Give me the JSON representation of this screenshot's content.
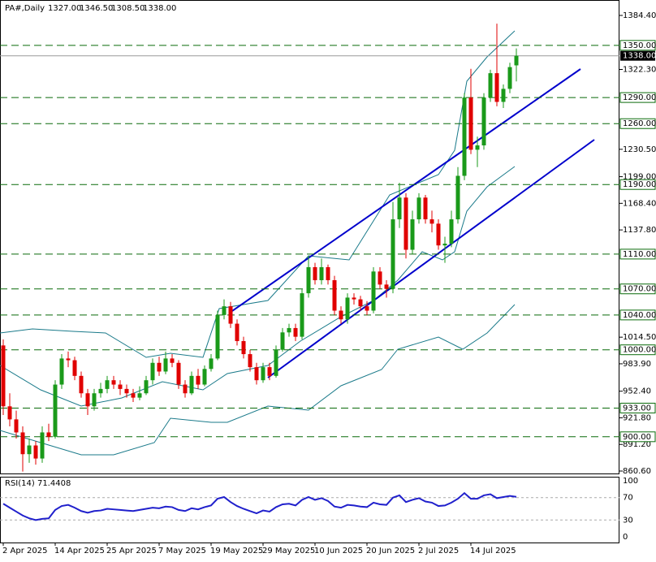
{
  "chart_data": {
    "type": "candlestick",
    "title": "PA#,Daily",
    "header_values": [
      "1327.00",
      "1346.50",
      "1308.50",
      "1338.00"
    ],
    "categories": [
      "2 Apr 2025",
      null,
      null,
      null,
      null,
      null,
      null,
      null,
      "14 Apr 2025",
      null,
      null,
      null,
      null,
      null,
      null,
      null,
      "25 Apr 2025",
      null,
      null,
      null,
      null,
      null,
      null,
      null,
      "7 May 2025",
      null,
      null,
      null,
      null,
      null,
      null,
      null,
      "19 May 2025",
      null,
      null,
      null,
      null,
      null,
      null,
      null,
      "29 May 2025",
      null,
      null,
      null,
      null,
      null,
      null,
      null,
      "10 Jun 2025",
      null,
      null,
      null,
      null,
      null,
      null,
      null,
      "20 Jun 2025",
      null,
      null,
      null,
      null,
      null,
      null,
      null,
      "2 Jul 2025",
      null,
      null,
      null,
      null,
      null,
      null,
      null,
      "14 Jul 2025",
      null,
      null,
      null,
      null,
      null,
      null,
      null
    ],
    "ohlc": [
      [
        1005,
        1012,
        925,
        935
      ],
      [
        935,
        950,
        912,
        920
      ],
      [
        920,
        930,
        898,
        905
      ],
      [
        905,
        912,
        860,
        880
      ],
      [
        880,
        898,
        870,
        890
      ],
      [
        890,
        895,
        868,
        875
      ],
      [
        875,
        912,
        870,
        905
      ],
      [
        905,
        915,
        895,
        900
      ],
      [
        900,
        965,
        898,
        960
      ],
      [
        960,
        995,
        955,
        990
      ],
      [
        990,
        998,
        980,
        988
      ],
      [
        988,
        992,
        965,
        970
      ],
      [
        970,
        975,
        945,
        950
      ],
      [
        950,
        955,
        925,
        935
      ],
      [
        935,
        955,
        930,
        950
      ],
      [
        950,
        962,
        945,
        955
      ],
      [
        955,
        970,
        950,
        965
      ],
      [
        965,
        970,
        955,
        960
      ],
      [
        960,
        965,
        948,
        955
      ],
      [
        955,
        960,
        945,
        950
      ],
      [
        950,
        955,
        940,
        945
      ],
      [
        945,
        958,
        942,
        950
      ],
      [
        950,
        970,
        948,
        965
      ],
      [
        965,
        990,
        960,
        985
      ],
      [
        985,
        992,
        970,
        975
      ],
      [
        975,
        998,
        972,
        990
      ],
      [
        990,
        995,
        980,
        985
      ],
      [
        985,
        988,
        955,
        960
      ],
      [
        960,
        965,
        945,
        950
      ],
      [
        950,
        975,
        948,
        970
      ],
      [
        970,
        978,
        955,
        960
      ],
      [
        960,
        982,
        958,
        978
      ],
      [
        978,
        995,
        975,
        990
      ],
      [
        990,
        1045,
        988,
        1040
      ],
      [
        1040,
        1058,
        1035,
        1050
      ],
      [
        1050,
        1055,
        1025,
        1030
      ],
      [
        1030,
        1035,
        1005,
        1010
      ],
      [
        1010,
        1015,
        990,
        995
      ],
      [
        995,
        1000,
        975,
        980
      ],
      [
        980,
        985,
        960,
        965
      ],
      [
        965,
        985,
        962,
        980
      ],
      [
        980,
        985,
        965,
        970
      ],
      [
        970,
        1005,
        968,
        1000
      ],
      [
        1000,
        1025,
        998,
        1020
      ],
      [
        1020,
        1030,
        1015,
        1025
      ],
      [
        1025,
        1030,
        1010,
        1015
      ],
      [
        1015,
        1070,
        1012,
        1065
      ],
      [
        1065,
        1108,
        1060,
        1095
      ],
      [
        1095,
        1100,
        1075,
        1080
      ],
      [
        1080,
        1105,
        1075,
        1095
      ],
      [
        1095,
        1098,
        1075,
        1080
      ],
      [
        1080,
        1085,
        1040,
        1045
      ],
      [
        1045,
        1050,
        1030,
        1035
      ],
      [
        1035,
        1065,
        1030,
        1060
      ],
      [
        1060,
        1065,
        1052,
        1058
      ],
      [
        1058,
        1062,
        1045,
        1050
      ],
      [
        1050,
        1056,
        1040,
        1045
      ],
      [
        1045,
        1095,
        1042,
        1090
      ],
      [
        1090,
        1095,
        1070,
        1075
      ],
      [
        1075,
        1080,
        1060,
        1070
      ],
      [
        1070,
        1170,
        1065,
        1150
      ],
      [
        1150,
        1192,
        1140,
        1175
      ],
      [
        1175,
        1180,
        1105,
        1115
      ],
      [
        1115,
        1160,
        1110,
        1150
      ],
      [
        1150,
        1180,
        1145,
        1175
      ],
      [
        1175,
        1178,
        1145,
        1150
      ],
      [
        1150,
        1160,
        1135,
        1145
      ],
      [
        1145,
        1150,
        1115,
        1120
      ],
      [
        1120,
        1130,
        1100,
        1122
      ],
      [
        1122,
        1160,
        1118,
        1150
      ],
      [
        1150,
        1210,
        1145,
        1200
      ],
      [
        1200,
        1295,
        1195,
        1290
      ],
      [
        1290,
        1323,
        1225,
        1230
      ],
      [
        1230,
        1245,
        1210,
        1235
      ],
      [
        1235,
        1295,
        1230,
        1290
      ],
      [
        1290,
        1322,
        1285,
        1318
      ],
      [
        1318,
        1375,
        1280,
        1285
      ],
      [
        1285,
        1305,
        1278,
        1300
      ],
      [
        1300,
        1330,
        1295,
        1325
      ],
      [
        1327,
        1346.5,
        1308.5,
        1338
      ]
    ],
    "up_color": "#1a9a1a",
    "down_color": "#e00000",
    "ylim": [
      860.6,
      1384.4
    ],
    "yticks": [
      {
        "value": 1384.4,
        "label": "1384.40"
      },
      {
        "value": 1322.3,
        "label": "1322.30"
      },
      {
        "value": 1230.5,
        "label": "1230.50"
      },
      {
        "value": 1199,
        "label": "1199.00"
      },
      {
        "value": 1168.4,
        "label": "1168.40"
      },
      {
        "value": 1137.8,
        "label": "1137.80"
      },
      {
        "value": 1014.5,
        "label": "1014.50"
      },
      {
        "value": 983.9,
        "label": "983.90"
      },
      {
        "value": 952.4,
        "label": "952.40"
      },
      {
        "value": 921.8,
        "label": "921.80"
      },
      {
        "value": 891.2,
        "label": "891.20"
      },
      {
        "value": 860.6,
        "label": "860.60"
      }
    ],
    "levels": [
      {
        "value": 1350,
        "label": "1350.00"
      },
      {
        "value": 1290,
        "label": "1290.00"
      },
      {
        "value": 1260,
        "label": "1260.00"
      },
      {
        "value": 1190,
        "label": "1190.00"
      },
      {
        "value": 1110,
        "label": "1110.00"
      },
      {
        "value": 1070,
        "label": "1070.00"
      },
      {
        "value": 1040,
        "label": "1040.00"
      },
      {
        "value": 1000,
        "label": "1000.00"
      },
      {
        "value": 933,
        "label": "933.00"
      },
      {
        "value": 900,
        "label": "900.00"
      }
    ],
    "level_color": "#0a6a0a",
    "current_price": {
      "value": 1338,
      "label": "1338.00"
    },
    "rsi": {
      "title": "RSI(14) 71.4408",
      "color": "#2020cc",
      "ylim": [
        0,
        100
      ],
      "yticks": [
        100,
        70,
        30,
        0
      ],
      "values": [
        59,
        52,
        45,
        38,
        33,
        30,
        32,
        33,
        48,
        55,
        57,
        52,
        46,
        43,
        46,
        47,
        50,
        49,
        48,
        47,
        46,
        48,
        50,
        52,
        51,
        54,
        53,
        48,
        46,
        51,
        49,
        53,
        56,
        68,
        71,
        62,
        55,
        50,
        46,
        42,
        47,
        45,
        53,
        58,
        59,
        56,
        66,
        71,
        66,
        69,
        64,
        54,
        52,
        57,
        56,
        54,
        53,
        61,
        58,
        57,
        70,
        74,
        62,
        66,
        69,
        63,
        61,
        55,
        56,
        61,
        68,
        78,
        68,
        68,
        74,
        76,
        69,
        71,
        73,
        71.44
      ]
    }
  }
}
